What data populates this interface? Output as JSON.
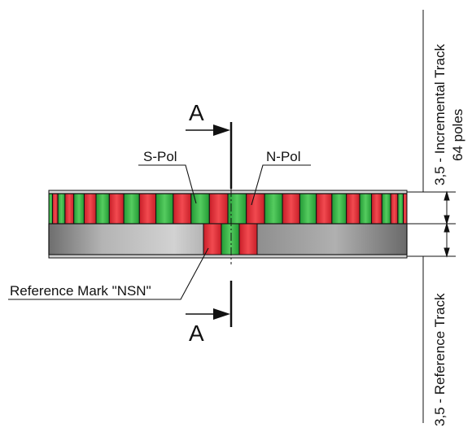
{
  "drawing": {
    "section_label_top": "A",
    "section_label_bottom": "A",
    "label_s_pol": "S-Pol",
    "label_n_pol": "N-Pol",
    "label_reference_mark": "Reference Mark \"NSN\"",
    "dim_incremental": "3,5 - Incremental Track",
    "dim_incremental_poles": "64 poles",
    "dim_reference": "3,5 - Reference Track"
  },
  "colors": {
    "north_red": "#e8333a",
    "south_green": "#38b54a",
    "body_grey": "#9a9a9a",
    "line": "#111111"
  },
  "tracks": {
    "incremental_poles": 64,
    "reference_mark_sequence": [
      "N",
      "S",
      "N"
    ]
  },
  "icons": {
    "section_arrow": "section-arrow-icon"
  }
}
